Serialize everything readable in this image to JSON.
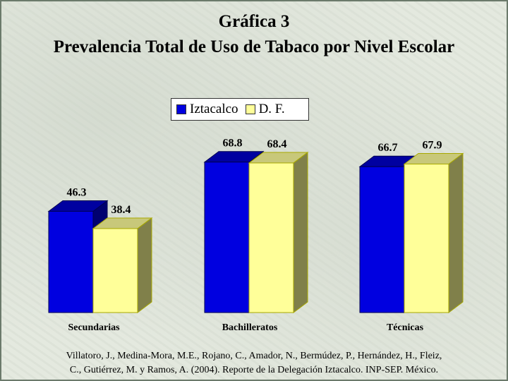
{
  "title_line1": "Gráfica 3",
  "title_line2": "Prevalencia Total de Uso de Tabaco por Nivel Escolar",
  "legend": [
    {
      "label": "Iztacalco",
      "color": "#0000e0"
    },
    {
      "label": "D. F.",
      "color": "#ffff99"
    }
  ],
  "source_line1": "Villatoro, J., Medina-Mora, M.E., Rojano, C., Amador, N., Bermúdez, P., Hernández, H., Fleiz,",
  "source_line2": "C., Gutiérrez, M. y Ramos, A. (2004). Reporte de la Delegación Iztacalco. INP-SEP. México.",
  "chart_data": {
    "type": "bar",
    "categories": [
      "Secundarias",
      "Bachilleratos",
      "Técnicas"
    ],
    "series": [
      {
        "name": "Iztacalco",
        "values": [
          46.3,
          68.8,
          66.7
        ],
        "color": "#0000e0"
      },
      {
        "name": "D. F.",
        "values": [
          38.4,
          68.4,
          67.9
        ],
        "color": "#ffff99"
      }
    ],
    "data_labels": [
      [
        "46.3",
        "38.4"
      ],
      [
        "68.8",
        "68.4"
      ],
      [
        "66.7",
        "67.9"
      ]
    ],
    "ylim": [
      0,
      100
    ],
    "grid": false,
    "style": "3d-bar",
    "legend_position": "top-center"
  }
}
